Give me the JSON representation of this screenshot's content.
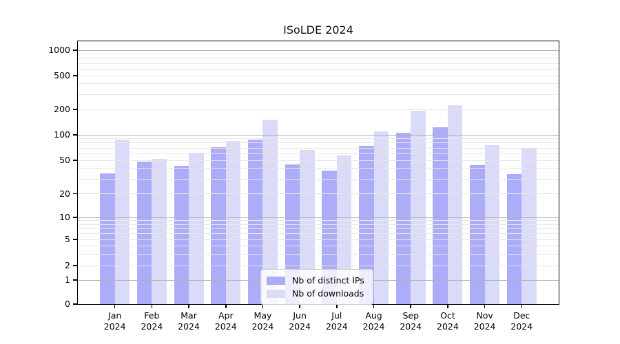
{
  "title": "ISoLDE 2024",
  "chart_data": {
    "type": "bar",
    "title": "ISoLDE 2024",
    "categories": [
      "Jan 2024",
      "Feb 2024",
      "Mar 2024",
      "Apr 2024",
      "May 2024",
      "Jun 2024",
      "Jul 2024",
      "Aug 2024",
      "Sep 2024",
      "Oct 2024",
      "Nov 2024",
      "Dec 2024"
    ],
    "series": [
      {
        "name": "Nb of distinct IPs",
        "color": "#acacf8",
        "values": [
          35,
          48,
          43,
          72,
          88,
          45,
          38,
          74,
          106,
          122,
          44,
          34
        ]
      },
      {
        "name": "Nb of downloads",
        "color": "#dadaf9",
        "values": [
          88,
          52,
          62,
          85,
          150,
          66,
          57,
          110,
          192,
          225,
          75,
          70
        ]
      }
    ],
    "yscale": "symlog",
    "yticks": [
      0,
      1,
      2,
      5,
      10,
      20,
      50,
      100,
      200,
      500,
      1000
    ],
    "ylim": [
      0,
      1300
    ],
    "xlabel": "",
    "ylabel": "",
    "grid": "horizontal",
    "grid_major_color": "#b0b0b0",
    "grid_minor_color": "#e6e6e6",
    "axis_color": "#000000",
    "legend_position": "lower-center",
    "bar_mode": "grouped"
  }
}
